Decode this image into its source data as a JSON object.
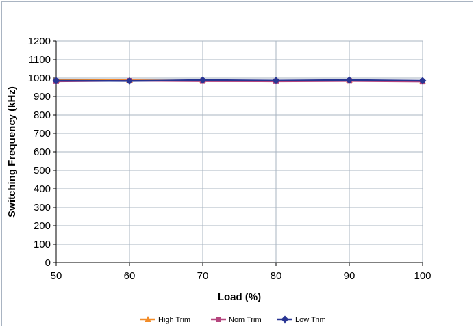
{
  "chart_data": {
    "type": "line",
    "title": "",
    "xlabel": "Load (%)",
    "ylabel": "Switching Frequency (kHz)",
    "x": [
      50,
      60,
      70,
      80,
      90,
      100
    ],
    "xlim": [
      50,
      100
    ],
    "ylim": [
      0,
      1200
    ],
    "xticks": [
      "50",
      "60",
      "70",
      "80",
      "90",
      "100"
    ],
    "yticks": [
      "0",
      "100",
      "200",
      "300",
      "400",
      "500",
      "600",
      "700",
      "800",
      "900",
      "1000",
      "1100",
      "1200"
    ],
    "grid": true,
    "legend_position": "bottom",
    "series": [
      {
        "name": "High Trim",
        "color": "#f28c28",
        "marker": "triangle",
        "values": [
          990,
          988,
          986,
          985,
          987,
          984
        ]
      },
      {
        "name": "Nom Trim",
        "color": "#b5467e",
        "marker": "square",
        "values": [
          982,
          985,
          983,
          982,
          984,
          981
        ]
      },
      {
        "name": "Low Trim",
        "color": "#283593",
        "marker": "diamond",
        "values": [
          985,
          984,
          989,
          986,
          989,
          985
        ]
      }
    ]
  }
}
